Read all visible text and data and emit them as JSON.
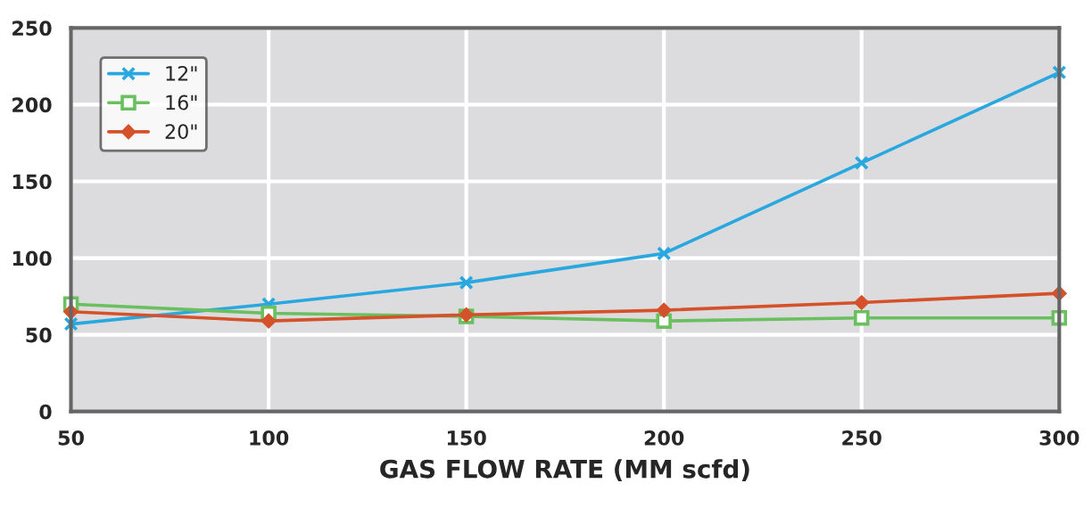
{
  "chart_data": {
    "type": "line",
    "xlabel": "GAS FLOW RATE (MM scfd)",
    "x": [
      50,
      100,
      150,
      200,
      250,
      300
    ],
    "series": [
      {
        "name": "12\"",
        "color": "#29a8e0",
        "marker": "cross",
        "values": [
          57,
          70,
          84,
          103,
          162,
          221
        ]
      },
      {
        "name": "16\"",
        "color": "#6abf5e",
        "marker": "square",
        "values": [
          70,
          64,
          62,
          59,
          61,
          61
        ]
      },
      {
        "name": "20\"",
        "color": "#d4512a",
        "marker": "diamond",
        "values": [
          65,
          59,
          63,
          66,
          71,
          77
        ]
      }
    ],
    "xlim": [
      50,
      300
    ],
    "xticks": [
      50,
      100,
      150,
      200,
      250,
      300
    ],
    "ylim": [
      0,
      250
    ],
    "yticks": [
      0,
      50,
      100,
      150,
      200,
      250
    ],
    "grid": true,
    "legend": "top left",
    "line_style": "solid"
  }
}
